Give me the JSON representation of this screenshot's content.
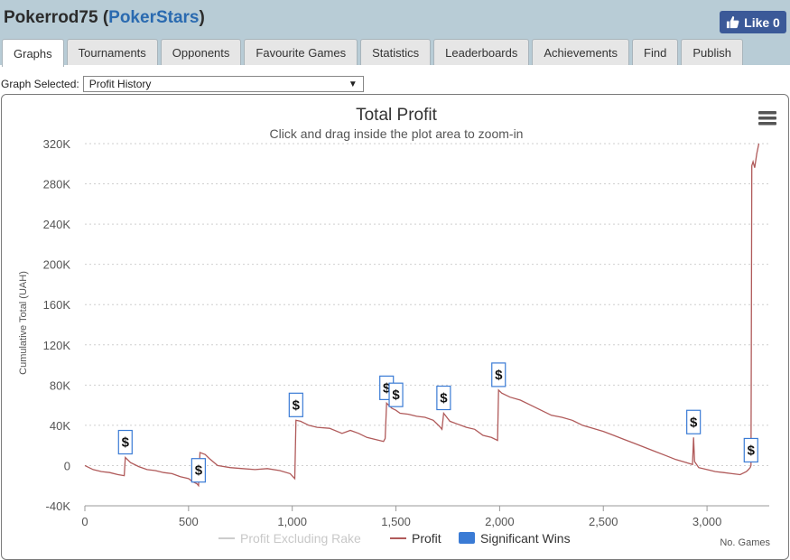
{
  "header": {
    "player_name": "Pokerrod75",
    "site_name": "PokerStars",
    "like_label": "Like 0"
  },
  "tabs": [
    {
      "label": "Graphs",
      "active": true
    },
    {
      "label": "Tournaments",
      "active": false
    },
    {
      "label": "Opponents",
      "active": false
    },
    {
      "label": "Favourite Games",
      "active": false
    },
    {
      "label": "Statistics",
      "active": false
    },
    {
      "label": "Leaderboards",
      "active": false
    },
    {
      "label": "Achievements",
      "active": false
    },
    {
      "label": "Find",
      "active": false
    },
    {
      "label": "Publish",
      "active": false
    }
  ],
  "graph_select": {
    "label": "Graph Selected:",
    "value": "Profit History"
  },
  "icons": {
    "like": "thumbs-up-icon",
    "menu": "hamburger-menu-icon",
    "dropdown": "triangle-down-icon"
  },
  "colors": {
    "header_bg": "#b8ccd6",
    "site_link": "#2a6ab0",
    "profit_line": "#b05a5a",
    "profit_excl_rake": "#cccccc",
    "significant_wins": "#3a7bd5",
    "facebook": "#3b5998"
  },
  "chart_data": {
    "type": "line",
    "title": "Total Profit",
    "subtitle": "Click and drag inside the plot area to zoom-in",
    "ylabel": "Cumulative Total (UAH)",
    "xlabel": "No. Games",
    "xlim": [
      0,
      3300
    ],
    "ylim": [
      -40000,
      320000
    ],
    "x_ticks": [
      0,
      500,
      1000,
      1500,
      2000,
      2500,
      3000
    ],
    "x_tick_labels": [
      "0",
      "500",
      "1,000",
      "1,500",
      "2,000",
      "2,500",
      "3,000"
    ],
    "y_ticks": [
      -40000,
      0,
      40000,
      80000,
      120000,
      160000,
      200000,
      240000,
      280000,
      320000
    ],
    "y_tick_labels": [
      "-40K",
      "0",
      "40K",
      "80K",
      "120K",
      "160K",
      "200K",
      "240K",
      "280K",
      "320K"
    ],
    "grid": true,
    "legend_position": "bottom",
    "legend": [
      {
        "name": "Profit Excluding Rake",
        "kind": "line",
        "color": "#cccccc"
      },
      {
        "name": "Profit",
        "kind": "line",
        "color": "#b05a5a"
      },
      {
        "name": "Significant Wins",
        "kind": "box",
        "color": "#3a7bd5"
      }
    ],
    "series": [
      {
        "name": "Profit",
        "x": [
          0,
          40,
          80,
          120,
          160,
          190,
          195,
          220,
          260,
          300,
          340,
          380,
          420,
          460,
          500,
          520,
          540,
          548,
          555,
          580,
          600,
          640,
          700,
          760,
          820,
          880,
          940,
          990,
          1012,
          1018,
          1040,
          1080,
          1120,
          1180,
          1240,
          1280,
          1320,
          1360,
          1400,
          1440,
          1448,
          1455,
          1480,
          1500,
          1520,
          1560,
          1600,
          1640,
          1680,
          1710,
          1722,
          1730,
          1760,
          1800,
          1840,
          1880,
          1920,
          1960,
          1990,
          1995,
          2010,
          2050,
          2100,
          2150,
          2200,
          2250,
          2300,
          2350,
          2400,
          2450,
          2500,
          2550,
          2600,
          2650,
          2700,
          2750,
          2800,
          2850,
          2900,
          2930,
          2935,
          2940,
          2960,
          3000,
          3040,
          3080,
          3120,
          3160,
          3190,
          3200,
          3208,
          3212,
          3216,
          3222,
          3230,
          3240,
          3250
        ],
        "values": [
          0,
          -4000,
          -6000,
          -7000,
          -9000,
          -10000,
          8000,
          3000,
          -1000,
          -4000,
          -5000,
          -7000,
          -8000,
          -11000,
          -13000,
          -16000,
          -18000,
          -20000,
          13000,
          11000,
          7000,
          0,
          -2000,
          -3000,
          -4000,
          -3000,
          -5000,
          -8000,
          -13000,
          45000,
          44000,
          40000,
          38000,
          37000,
          32000,
          35000,
          32000,
          28000,
          26000,
          24000,
          27000,
          62000,
          57000,
          55000,
          52000,
          51000,
          49000,
          48000,
          45000,
          39000,
          36000,
          52000,
          44000,
          41000,
          38000,
          36000,
          30000,
          28000,
          25000,
          75000,
          72000,
          68000,
          65000,
          60000,
          55000,
          50000,
          48000,
          45000,
          40000,
          37000,
          34000,
          30000,
          26000,
          22000,
          18000,
          14000,
          10000,
          6000,
          3000,
          1000,
          28000,
          4000,
          -2000,
          -4000,
          -6000,
          -7000,
          -8000,
          -9000,
          -6000,
          -4000,
          -2000,
          0,
          298000,
          302000,
          296000,
          310000,
          320000
        ]
      }
    ],
    "significant_wins": [
      {
        "x": 195,
        "label": "$"
      },
      {
        "x": 548,
        "label": "$"
      },
      {
        "x": 1018,
        "label": "$"
      },
      {
        "x": 1455,
        "label": "$"
      },
      {
        "x": 1500,
        "label": "$"
      },
      {
        "x": 1730,
        "label": "$"
      },
      {
        "x": 1995,
        "label": "$"
      },
      {
        "x": 2935,
        "label": "$"
      },
      {
        "x": 3212,
        "label": "$"
      }
    ]
  }
}
